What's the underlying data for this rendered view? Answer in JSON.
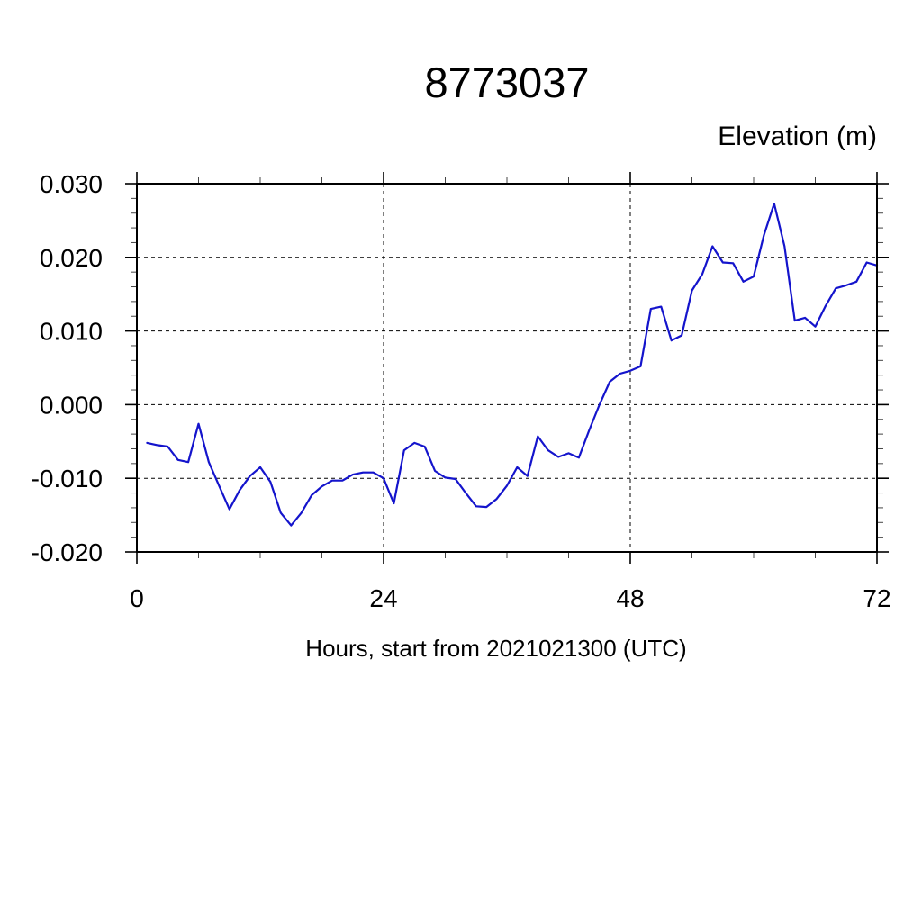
{
  "title": "8773037",
  "y_axis_title": "Elevation (m)",
  "x_axis_label": "Hours, start from 2021021300 (UTC)",
  "chart_data": {
    "type": "line",
    "title": "8773037",
    "xlabel": "Hours, start from 2021021300 (UTC)",
    "ylabel": "Elevation (m)",
    "xlim": [
      0,
      72
    ],
    "ylim": [
      -0.02,
      0.03
    ],
    "x_major_tick": 24,
    "x_minor_tick": 6,
    "y_major_tick": 0.01,
    "y_minor_tick": 0.002,
    "x_tick_labels": [
      "0",
      "24",
      "48",
      "72"
    ],
    "y_tick_labels": [
      "0.030",
      "0.020",
      "0.010",
      "0.000",
      "-0.010",
      "-0.020"
    ],
    "grid": true,
    "legend": "none",
    "line_color": "#1414cc",
    "series": [
      {
        "name": "elevation",
        "color": "#1414cc",
        "x": [
          1,
          2,
          3,
          4,
          5,
          6,
          7,
          8,
          9,
          10,
          11,
          12,
          13,
          14,
          15,
          16,
          17,
          18,
          19,
          20,
          21,
          22,
          23,
          24,
          25,
          26,
          27,
          28,
          29,
          30,
          31,
          32,
          33,
          34,
          35,
          36,
          37,
          38,
          39,
          40,
          41,
          42,
          43,
          44,
          45,
          46,
          47,
          48,
          49,
          50,
          51,
          52,
          53,
          54,
          55,
          56,
          57,
          58,
          59,
          60,
          61,
          62,
          63,
          64,
          65,
          66,
          67,
          68,
          69,
          70,
          71,
          72
        ],
        "y": [
          -0.0052,
          -0.0055,
          -0.0057,
          -0.0075,
          -0.0078,
          -0.0026,
          -0.0078,
          -0.011,
          -0.0142,
          -0.0116,
          -0.0097,
          -0.0085,
          -0.0105,
          -0.0147,
          -0.0164,
          -0.0147,
          -0.0123,
          -0.0111,
          -0.0103,
          -0.0103,
          -0.0095,
          -0.0092,
          -0.0092,
          -0.01,
          -0.0134,
          -0.0062,
          -0.0052,
          -0.0057,
          -0.009,
          -0.0099,
          -0.0101,
          -0.012,
          -0.0138,
          -0.0139,
          -0.0128,
          -0.011,
          -0.0085,
          -0.0097,
          -0.0043,
          -0.0062,
          -0.0071,
          -0.0066,
          -0.0072,
          -0.0035,
          0.0,
          0.0031,
          0.0042,
          0.0046,
          0.0052,
          0.013,
          0.0133,
          0.0087,
          0.0094,
          0.0155,
          0.0177,
          0.0215,
          0.0193,
          0.0192,
          0.0167,
          0.0174,
          0.023,
          0.0273,
          0.0215,
          0.0114,
          0.0118,
          0.0106,
          0.0134,
          0.0158,
          0.0162,
          0.0167,
          0.0193,
          0.0189
        ]
      }
    ]
  }
}
